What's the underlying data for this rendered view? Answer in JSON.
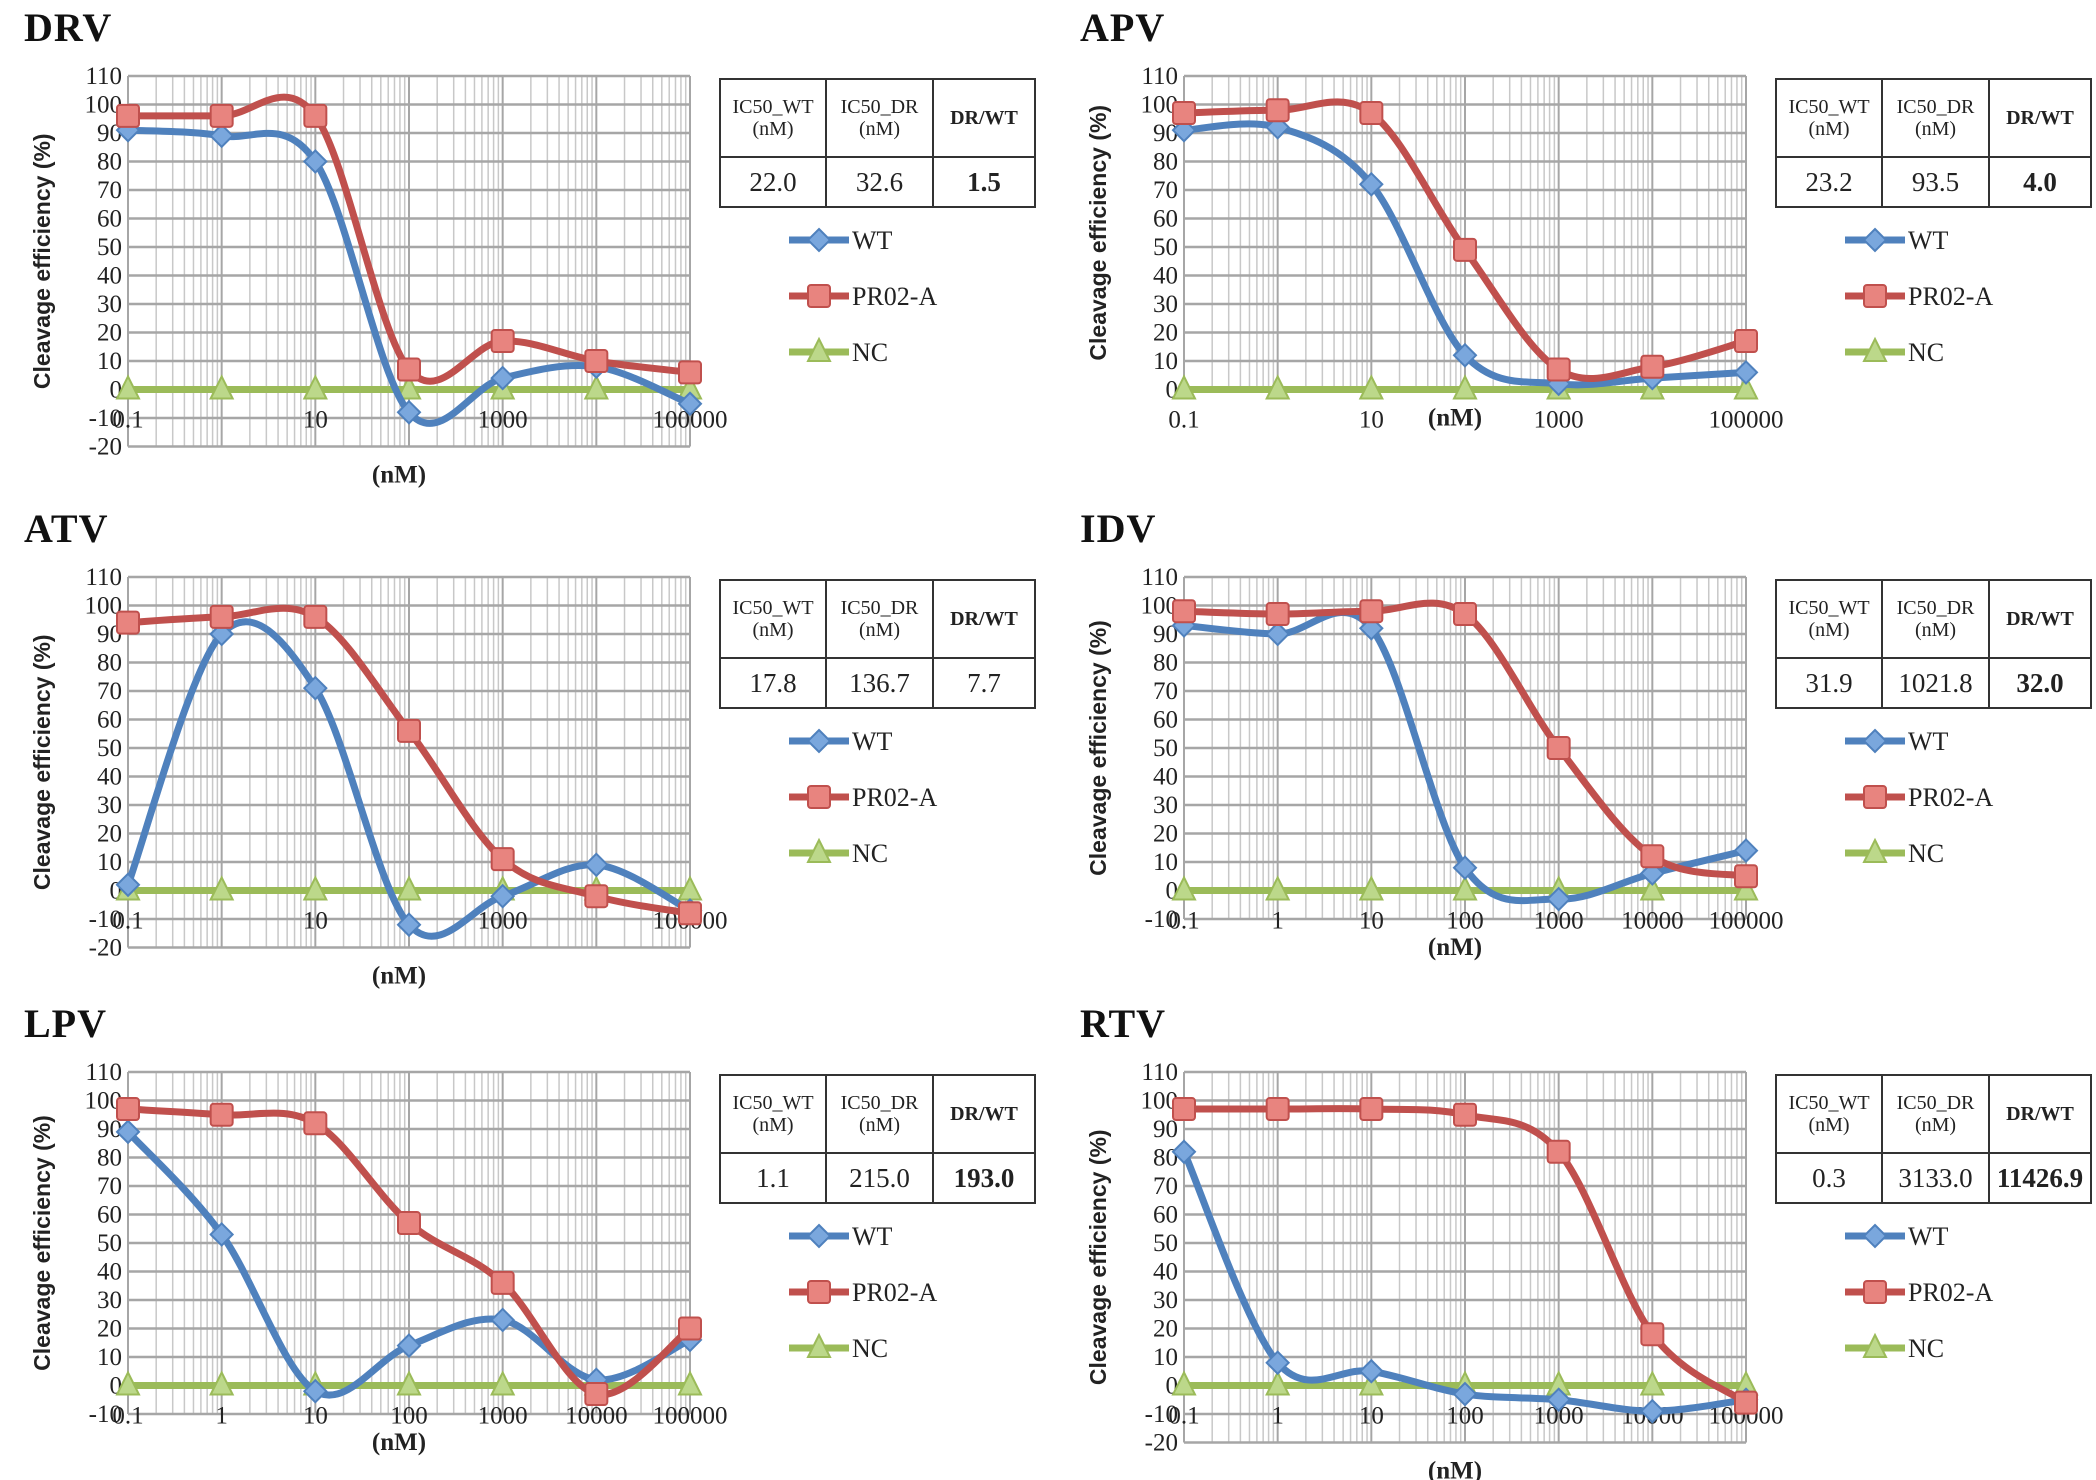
{
  "colors": {
    "WT": "#4f81bd",
    "PR02-A": "#c0504d",
    "NC": "#9bbb59"
  },
  "chart_data": [
    {
      "type": "line",
      "title": "DRV",
      "xlabel": "(nM)",
      "ylabel": "Cleavage efficiency (%)",
      "xscale": "log",
      "x": [
        0.1,
        1,
        10,
        100,
        1000,
        10000,
        100000
      ],
      "xticklabels": [
        "0.1",
        "10",
        "1000",
        "100000"
      ],
      "ylim": [
        -20,
        110
      ],
      "series": [
        {
          "name": "WT",
          "values": [
            91,
            89,
            80,
            -8,
            4,
            8,
            -5
          ]
        },
        {
          "name": "PR02-A",
          "values": [
            96,
            96,
            96,
            7,
            17,
            10,
            6
          ]
        },
        {
          "name": "NC",
          "values": [
            0,
            0,
            0,
            0,
            0,
            0,
            0
          ]
        }
      ],
      "table": {
        "headers": [
          "IC50_WT (nM)",
          "IC50_DR (nM)",
          "DR/WT"
        ],
        "values": [
          "22.0",
          "32.6",
          "1.5"
        ]
      }
    },
    {
      "type": "line",
      "title": "APV",
      "xlabel": "(nM)",
      "ylabel": "Cleavage efficiency (%)",
      "xscale": "log",
      "x": [
        0.1,
        1,
        10,
        100,
        1000,
        10000,
        100000
      ],
      "xticklabels": [
        "0.1",
        "10",
        "1000",
        "100000"
      ],
      "ylim": [
        0,
        110
      ],
      "series": [
        {
          "name": "WT",
          "values": [
            91,
            92,
            72,
            12,
            2,
            4,
            6
          ]
        },
        {
          "name": "PR02-A",
          "values": [
            97,
            98,
            97,
            49,
            7,
            8,
            17
          ]
        },
        {
          "name": "NC",
          "values": [
            0,
            0,
            0,
            0,
            0,
            0,
            0
          ]
        }
      ],
      "table": {
        "headers": [
          "IC50_WT (nM)",
          "IC50_DR (nM)",
          "DR/WT"
        ],
        "values": [
          "23.2",
          "93.5",
          "4.0"
        ]
      }
    },
    {
      "type": "line",
      "title": "ATV",
      "xlabel": "(nM)",
      "ylabel": "Cleavage efficiency (%)",
      "xscale": "log",
      "x": [
        0.1,
        1,
        10,
        100,
        1000,
        10000,
        100000
      ],
      "xticklabels": [
        "0.1",
        "10",
        "1000",
        "100000"
      ],
      "ylim": [
        -20,
        110
      ],
      "series": [
        {
          "name": "WT",
          "values": [
            2,
            90,
            71,
            -12,
            -2,
            9,
            -7
          ]
        },
        {
          "name": "PR02-A",
          "values": [
            94,
            96,
            96,
            56,
            11,
            -2,
            -8
          ]
        },
        {
          "name": "NC",
          "values": [
            0,
            0,
            0,
            0,
            0,
            0,
            0
          ]
        }
      ],
      "table": {
        "headers": [
          "IC50_WT (nM)",
          "IC50_DR (nM)",
          "DR/WT"
        ],
        "values": [
          "17.8",
          "136.7",
          "7.7"
        ]
      }
    },
    {
      "type": "line",
      "title": "IDV",
      "xlabel": "(nM)",
      "ylabel": "Cleavage efficiency (%)",
      "xscale": "log",
      "x": [
        0.1,
        1,
        10,
        100,
        1000,
        10000,
        100000
      ],
      "xticklabels": [
        "0.1",
        "1",
        "10",
        "100",
        "1000",
        "10000",
        "100000"
      ],
      "ylim": [
        -10,
        110
      ],
      "series": [
        {
          "name": "WT",
          "values": [
            93,
            90,
            92,
            8,
            -3,
            6,
            14
          ]
        },
        {
          "name": "PR02-A",
          "values": [
            98,
            97,
            98,
            97,
            50,
            12,
            5
          ]
        },
        {
          "name": "NC",
          "values": [
            0,
            0,
            0,
            0,
            0,
            0,
            0
          ]
        }
      ],
      "table": {
        "headers": [
          "IC50_WT (nM)",
          "IC50_DR (nM)",
          "DR/WT"
        ],
        "values": [
          "31.9",
          "1021.8",
          "32.0"
        ]
      }
    },
    {
      "type": "line",
      "title": "LPV",
      "xlabel": "(nM)",
      "ylabel": "Cleavage efficiency (%)",
      "xscale": "log",
      "x": [
        0.1,
        1,
        10,
        100,
        1000,
        10000,
        100000
      ],
      "xticklabels": [
        "0.1",
        "1",
        "10",
        "100",
        "1000",
        "10000",
        "100000"
      ],
      "ylim": [
        -10,
        110
      ],
      "series": [
        {
          "name": "WT",
          "values": [
            89,
            53,
            -2,
            14,
            23,
            2,
            16
          ]
        },
        {
          "name": "PR02-A",
          "values": [
            97,
            95,
            92,
            57,
            36,
            -3,
            20
          ]
        },
        {
          "name": "NC",
          "values": [
            0,
            0,
            0,
            0,
            0,
            0,
            0
          ]
        }
      ],
      "table": {
        "headers": [
          "IC50_WT (nM)",
          "IC50_DR (nM)",
          "DR/WT"
        ],
        "values": [
          "1.1",
          "215.0",
          "193.0"
        ]
      }
    },
    {
      "type": "line",
      "title": "RTV",
      "xlabel": "(nM)",
      "ylabel": "Cleavage efficiency (%)",
      "xscale": "log",
      "x": [
        0.1,
        1,
        10,
        100,
        1000,
        10000,
        100000
      ],
      "xticklabels": [
        "0.1",
        "1",
        "10",
        "100",
        "1000",
        "10000",
        "100000"
      ],
      "ylim": [
        -20,
        110
      ],
      "series": [
        {
          "name": "WT",
          "values": [
            82,
            8,
            5,
            -3,
            -5,
            -9,
            -5
          ]
        },
        {
          "name": "PR02-A",
          "values": [
            97,
            97,
            97,
            95,
            82,
            18,
            -6
          ]
        },
        {
          "name": "NC",
          "values": [
            0,
            0,
            0,
            0,
            0,
            0,
            0
          ]
        }
      ],
      "table": {
        "headers": [
          "IC50_WT (nM)",
          "IC50_DR (nM)",
          "DR/WT"
        ],
        "values": [
          "0.3",
          "3133.0",
          "11426.9"
        ]
      }
    }
  ]
}
